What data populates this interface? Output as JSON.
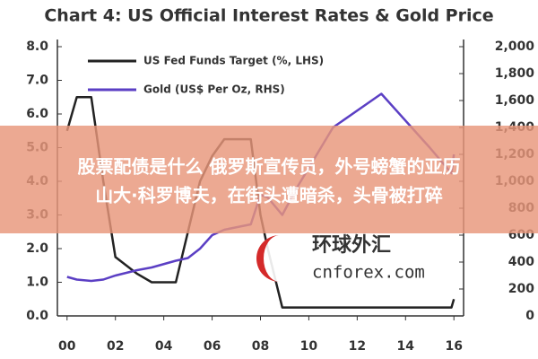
{
  "chart_data": {
    "type": "line",
    "title": "Chart 4: US Official Interest Rates & Gold Price",
    "x": [
      0,
      0.4,
      1.0,
      1.5,
      2.0,
      2.9,
      3.5,
      4.5,
      5.0,
      5.5,
      6.0,
      6.5,
      7.6,
      8.0,
      8.3,
      8.9,
      9.5,
      11,
      13,
      15,
      15.9,
      16
    ],
    "series": [
      {
        "name": "US Fed Funds Target (%, LHS)",
        "color": "#222222",
        "values": [
          5.5,
          6.5,
          6.5,
          4.0,
          1.75,
          1.25,
          1.0,
          1.0,
          2.5,
          4.0,
          4.75,
          5.25,
          5.25,
          3.0,
          2.0,
          0.25,
          0.25,
          0.25,
          0.25,
          0.25,
          0.25,
          0.5
        ]
      },
      {
        "name": "Gold (US$ Per Oz, RHS)",
        "color": "#5b3fc4",
        "axis": "y2",
        "values": [
          290,
          270,
          260,
          270,
          300,
          340,
          360,
          410,
          430,
          500,
          600,
          640,
          680,
          900,
          880,
          750,
          950,
          1400,
          1650,
          1250,
          1060,
          1200
        ]
      }
    ],
    "xlim": [
      -0.4,
      16.4
    ],
    "xticks": [
      {
        "value": 0,
        "label": "00"
      },
      {
        "value": 2,
        "label": "02"
      },
      {
        "value": 4,
        "label": "04"
      },
      {
        "value": 6,
        "label": "06"
      },
      {
        "value": 8,
        "label": "08"
      },
      {
        "value": 10,
        "label": "10"
      },
      {
        "value": 12,
        "label": "12"
      },
      {
        "value": 14,
        "label": "14"
      },
      {
        "value": 16,
        "label": "16"
      }
    ],
    "ylim": [
      0,
      8
    ],
    "yticks": [
      {
        "value": 0,
        "label": "0.0"
      },
      {
        "value": 1,
        "label": "1.0"
      },
      {
        "value": 2,
        "label": "2.0"
      },
      {
        "value": 3,
        "label": "3.0"
      },
      {
        "value": 4,
        "label": "4.0"
      },
      {
        "value": 5,
        "label": "5.0"
      },
      {
        "value": 6,
        "label": "6.0"
      },
      {
        "value": 7,
        "label": "7.0"
      },
      {
        "value": 8,
        "label": "8.0"
      }
    ],
    "y2lim": [
      0,
      2000
    ],
    "y2ticks": [
      0,
      200,
      400,
      600,
      800,
      {
        "value": 1000,
        "label": "1,000"
      },
      {
        "value": 1200,
        "label": "1,200"
      },
      {
        "value": 1400,
        "label": "1,400"
      },
      {
        "value": 1600,
        "label": "1,600"
      },
      {
        "value": 1800,
        "label": "1,800"
      },
      {
        "value": 2000,
        "label": "2,000"
      }
    ]
  },
  "banner": {
    "lines": [
      "股票配债是什么 俄罗斯宣传员，外号螃蟹的亚历",
      "山大·科罗博夫，在街头遭暗杀，头骨被打碎"
    ]
  },
  "watermark": {
    "name": "环球外汇",
    "site": "cnforex.com"
  }
}
